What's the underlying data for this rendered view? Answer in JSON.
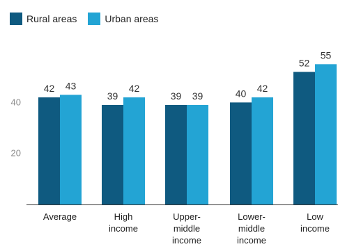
{
  "chart_data": {
    "type": "bar",
    "categories": [
      [
        "Average"
      ],
      [
        "High",
        "income"
      ],
      [
        "Upper-",
        "middle",
        "income"
      ],
      [
        "Lower-",
        "middle",
        "income"
      ],
      [
        "Low",
        "income"
      ]
    ],
    "series": [
      {
        "name": "Rural areas",
        "color": "#0f5a80",
        "values": [
          42,
          39,
          39,
          40,
          52
        ]
      },
      {
        "name": "Urban areas",
        "color": "#23a4d4",
        "values": [
          43,
          42,
          39,
          42,
          55
        ]
      }
    ],
    "y_ticks": [
      20,
      40
    ],
    "ylim": [
      0,
      60
    ],
    "grid": false,
    "legend": "top-left"
  }
}
